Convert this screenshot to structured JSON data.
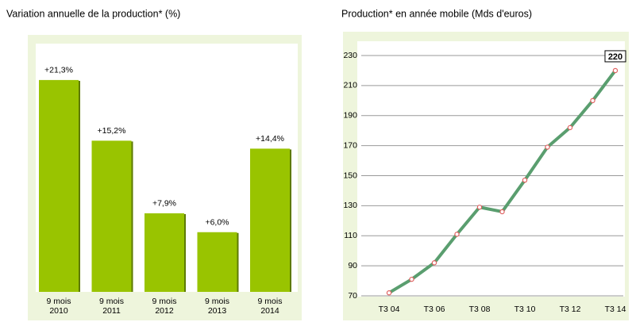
{
  "chart_data": [
    {
      "type": "bar",
      "title": "Variation annuelle de la production* (%)",
      "categories": [
        "9 mois 2010",
        "9 mois 2011",
        "9 mois 2012",
        "9 mois 2013",
        "9 mois 2014"
      ],
      "values": [
        21.3,
        15.2,
        7.9,
        6.0,
        14.4
      ],
      "value_labels": [
        "+21,3%",
        "+15,2%",
        "+7,9%",
        "+6,0%",
        "+14,4%"
      ],
      "color": "#99c400"
    },
    {
      "type": "line",
      "title": "Production* en année mobile (Mds d'euros)",
      "categories": [
        "T3 04",
        null,
        "T3 06",
        null,
        "T3 08",
        null,
        "T3 10",
        null,
        "T3 12",
        null,
        "T3 14"
      ],
      "values": [
        72,
        81,
        92,
        111,
        129,
        126,
        147,
        169,
        182,
        200,
        220
      ],
      "color": "#5a9e6f",
      "ylim": [
        70,
        230
      ],
      "yticks": [
        70,
        90,
        110,
        130,
        150,
        170,
        190,
        210,
        230
      ],
      "grid": true
    }
  ]
}
